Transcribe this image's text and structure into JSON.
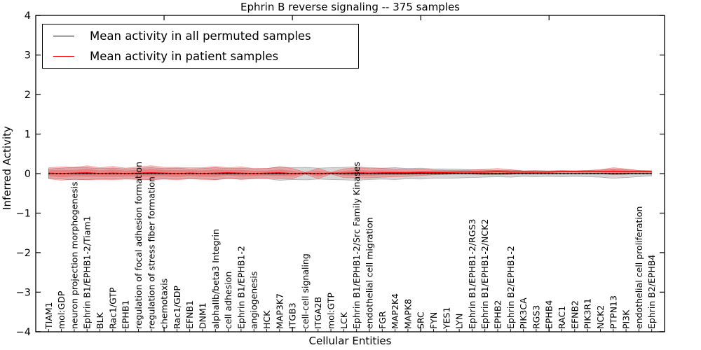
{
  "chart_data": {
    "type": "line",
    "title": "Ephrin B reverse signaling -- 375 samples",
    "xlabel": "Cellular Entities",
    "ylabel": "Inferred Activity",
    "ylim": [
      -4,
      4
    ],
    "xlim": [
      0,
      49
    ],
    "yticks": [
      4,
      3,
      2,
      1,
      0,
      -1,
      -2,
      -3,
      -4
    ],
    "xticks": [
      10,
      20,
      30,
      40
    ],
    "grid": false,
    "legend_position": "upper left",
    "categories": [
      "TIAM1",
      "mol:GDP",
      "neuron projection morphogenesis",
      "Ephrin B1/EPHB1-2/Tiam1",
      "BLK",
      "Rac1/GTP",
      "EPHB1",
      "regulation of focal adhesion formation",
      "regulation of stress fiber formation",
      "chemotaxis",
      "Rac1/GDP",
      "EFNB1",
      "DNM1",
      "alphaIIb/beta3 Integrin",
      "cell adhesion",
      "Ephrin B1/EPHB1-2",
      "angiogenesis",
      "HCK",
      "MAP3K7",
      "ITGB3",
      "cell-cell signaling",
      "ITGA2B",
      "mol:GTP",
      "LCK",
      "Ephrin B1/EPHB1-2/Src Family Kinases",
      "endothelial cell migration",
      "FGR",
      "MAP2K4",
      "MAPK8",
      "SRC",
      "FYN",
      "YES1",
      "LYN",
      "Ephrin B1/EPHB1-2/RGS3",
      "Ephrin B1/EPHB1-2/NCK2",
      "EPHB2",
      "Ephrin B2/EPHB1-2",
      "PIK3CA",
      "RGS3",
      "EPHB4",
      "RAC1",
      "EFNB2",
      "PIK3R1",
      "NCK2",
      "PTPN13",
      "PI3K",
      "endothelial cell proliferation",
      "Ephrin B2/EPHB4"
    ],
    "series": [
      {
        "name": "Mean activity in all permuted samples",
        "color": "#000000",
        "band_alpha": 0.16,
        "inner_band": false,
        "dotted_overlay": true,
        "values": [
          0,
          0,
          0,
          0,
          0,
          0,
          0,
          0,
          0,
          0,
          0,
          0,
          0,
          0,
          0,
          0,
          0,
          0,
          0,
          0,
          0,
          0,
          0,
          0,
          0,
          0,
          0,
          0,
          0,
          0,
          0,
          0,
          0,
          0,
          0,
          0,
          0,
          0,
          0,
          0,
          0,
          0,
          0,
          0,
          0,
          0,
          0,
          0
        ],
        "std": [
          0.12,
          0.14,
          0.16,
          0.15,
          0.13,
          0.14,
          0.12,
          0.14,
          0.15,
          0.13,
          0.14,
          0.12,
          0.13,
          0.15,
          0.13,
          0.14,
          0.12,
          0.13,
          0.17,
          0.15,
          0.16,
          0.14,
          0.15,
          0.16,
          0.17,
          0.15,
          0.14,
          0.15,
          0.13,
          0.14,
          0.12,
          0.12,
          0.11,
          0.1,
          0.09,
          0.08,
          0.09,
          0.07,
          0.08,
          0.07,
          0.08,
          0.07,
          0.08,
          0.09,
          0.12,
          0.1,
          0.08,
          0.06
        ]
      },
      {
        "name": "Mean activity in patient samples",
        "color": "#ff0000",
        "band_alpha": 0.22,
        "inner_band": true,
        "dotted_overlay": false,
        "values": [
          0.01,
          0,
          0.01,
          0.02,
          0,
          0.01,
          0,
          0.01,
          0.02,
          0.01,
          0,
          0.01,
          0,
          0.01,
          0.02,
          0.01,
          0,
          0.01,
          0.02,
          0,
          0.01,
          0,
          0.01,
          0.01,
          0.02,
          0.01,
          0.02,
          0.02,
          0.02,
          0.03,
          0.03,
          0.03,
          0.04,
          0.04,
          0.04,
          0.05,
          0.04,
          0.04,
          0.04,
          0.04,
          0.05,
          0.05,
          0.05,
          0.05,
          0.06,
          0.05,
          0.05,
          0.05
        ],
        "std": [
          0.14,
          0.17,
          0.15,
          0.18,
          0.15,
          0.17,
          0.14,
          0.16,
          0.18,
          0.15,
          0.16,
          0.14,
          0.15,
          0.17,
          0.13,
          0.16,
          0.13,
          0.12,
          0.15,
          0.13,
          0.02,
          0.13,
          0.02,
          0.11,
          0.13,
          0.12,
          0.11,
          0.1,
          0.09,
          0.08,
          0.06,
          0.05,
          0.04,
          0.05,
          0.07,
          0.08,
          0.06,
          0.03,
          0.02,
          0.02,
          0.02,
          0.02,
          0.03,
          0.05,
          0.09,
          0.07,
          0.03,
          0.03
        ]
      }
    ]
  }
}
